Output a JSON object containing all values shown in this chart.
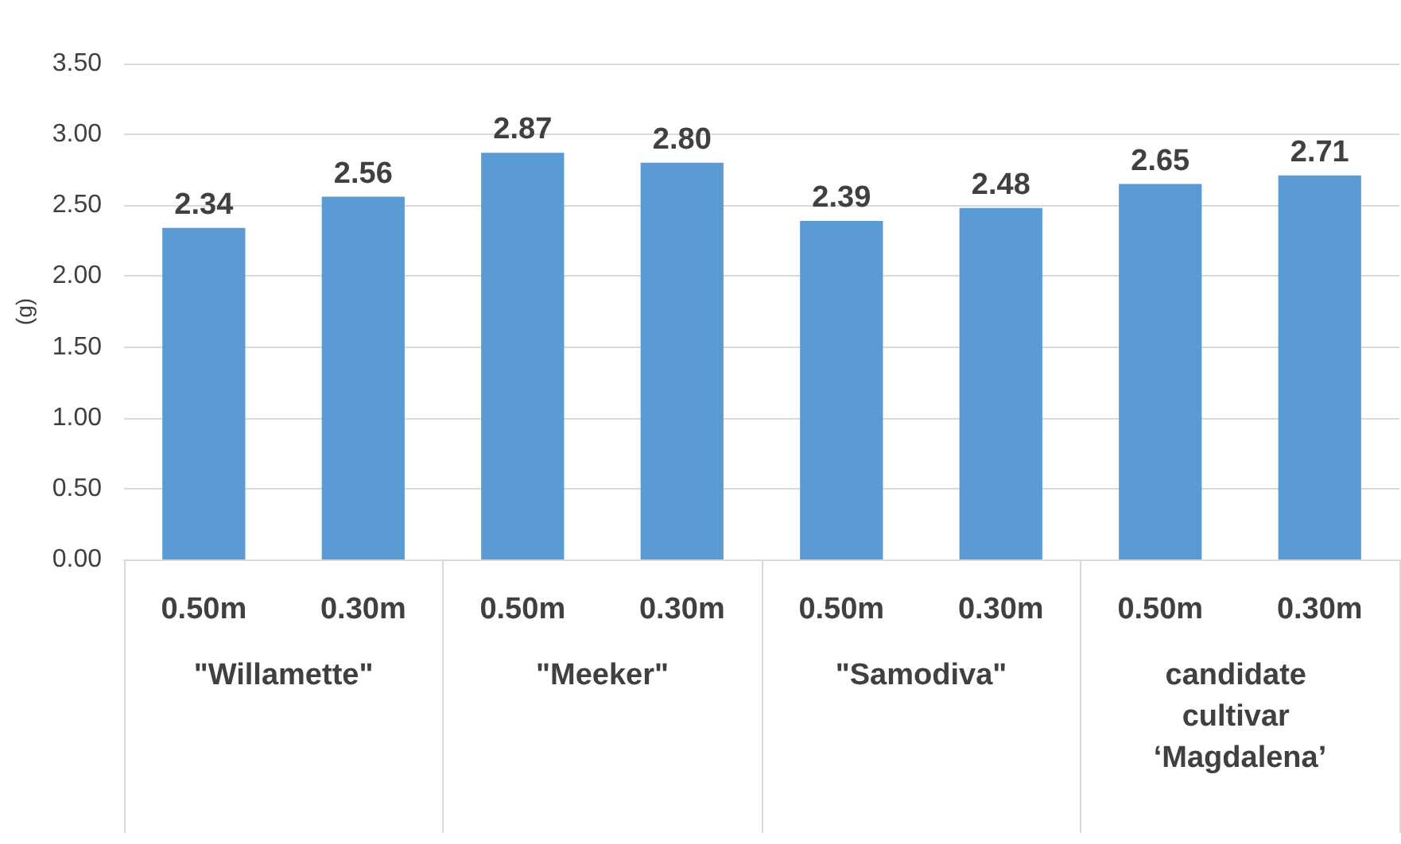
{
  "chart_data": {
    "type": "bar",
    "ylabel": "(g)",
    "categories": [
      "0.50m",
      "0.30m",
      "0.50m",
      "0.30m",
      "0.50m",
      "0.30m",
      "0.50m",
      "0.30m"
    ],
    "values": [
      2.34,
      2.56,
      2.87,
      2.8,
      2.39,
      2.48,
      2.65,
      2.71
    ],
    "value_labels": [
      "2.34",
      "2.56",
      "2.87",
      "2.80",
      "2.39",
      "2.48",
      "2.65",
      "2.71"
    ],
    "color": "#5b9bd5",
    "annotations": [
      "\"Willamette\"",
      "\"Meeker\"",
      "\"Samodiva\"",
      "candidate cultivar ‘Magdalena’"
    ],
    "ylim": [
      0,
      3.5
    ],
    "yticks": [
      {
        "value": 0,
        "label": "0.00"
      },
      {
        "value": 0.5,
        "label": "0.50"
      },
      {
        "value": 1,
        "label": "1.00"
      },
      {
        "value": 1.5,
        "label": "1.50"
      },
      {
        "value": 2,
        "label": "2.00"
      },
      {
        "value": 2.5,
        "label": "2.50"
      },
      {
        "value": 3,
        "label": "3.00"
      },
      {
        "value": 3.5,
        "label": "3.50"
      }
    ],
    "grid": "y"
  }
}
